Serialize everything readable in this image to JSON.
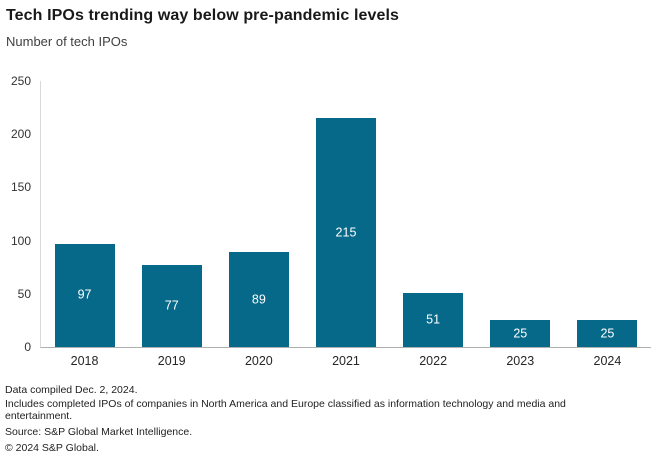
{
  "header": {
    "title": "Tech IPOs trending way below pre-pandemic levels",
    "subtitle": "Number of tech IPOs"
  },
  "chart_data": {
    "type": "bar",
    "title": "Tech IPOs trending way below pre-pandemic levels",
    "subtitle": "Number of tech IPOs",
    "categories": [
      "2018",
      "2019",
      "2020",
      "2021",
      "2022",
      "2023",
      "2024"
    ],
    "values": [
      97,
      77,
      89,
      215,
      51,
      25,
      25
    ],
    "xlabel": "",
    "ylabel": "Number of tech IPOs",
    "ylim": [
      0,
      250
    ],
    "yticks": [
      0,
      50,
      100,
      150,
      200,
      250
    ],
    "grid": false,
    "legend": "none",
    "bar_color": "#07698a",
    "value_label_color": "#ffffff",
    "value_labels_inside_bars": true
  },
  "footer": {
    "notes": [
      "Data compiled Dec. 2, 2024.",
      "Includes completed IPOs of companies in North America and Europe classified as information technology and media and entertainment.",
      "Source: S&P Global Market Intelligence.",
      "© 2024 S&P Global."
    ]
  }
}
